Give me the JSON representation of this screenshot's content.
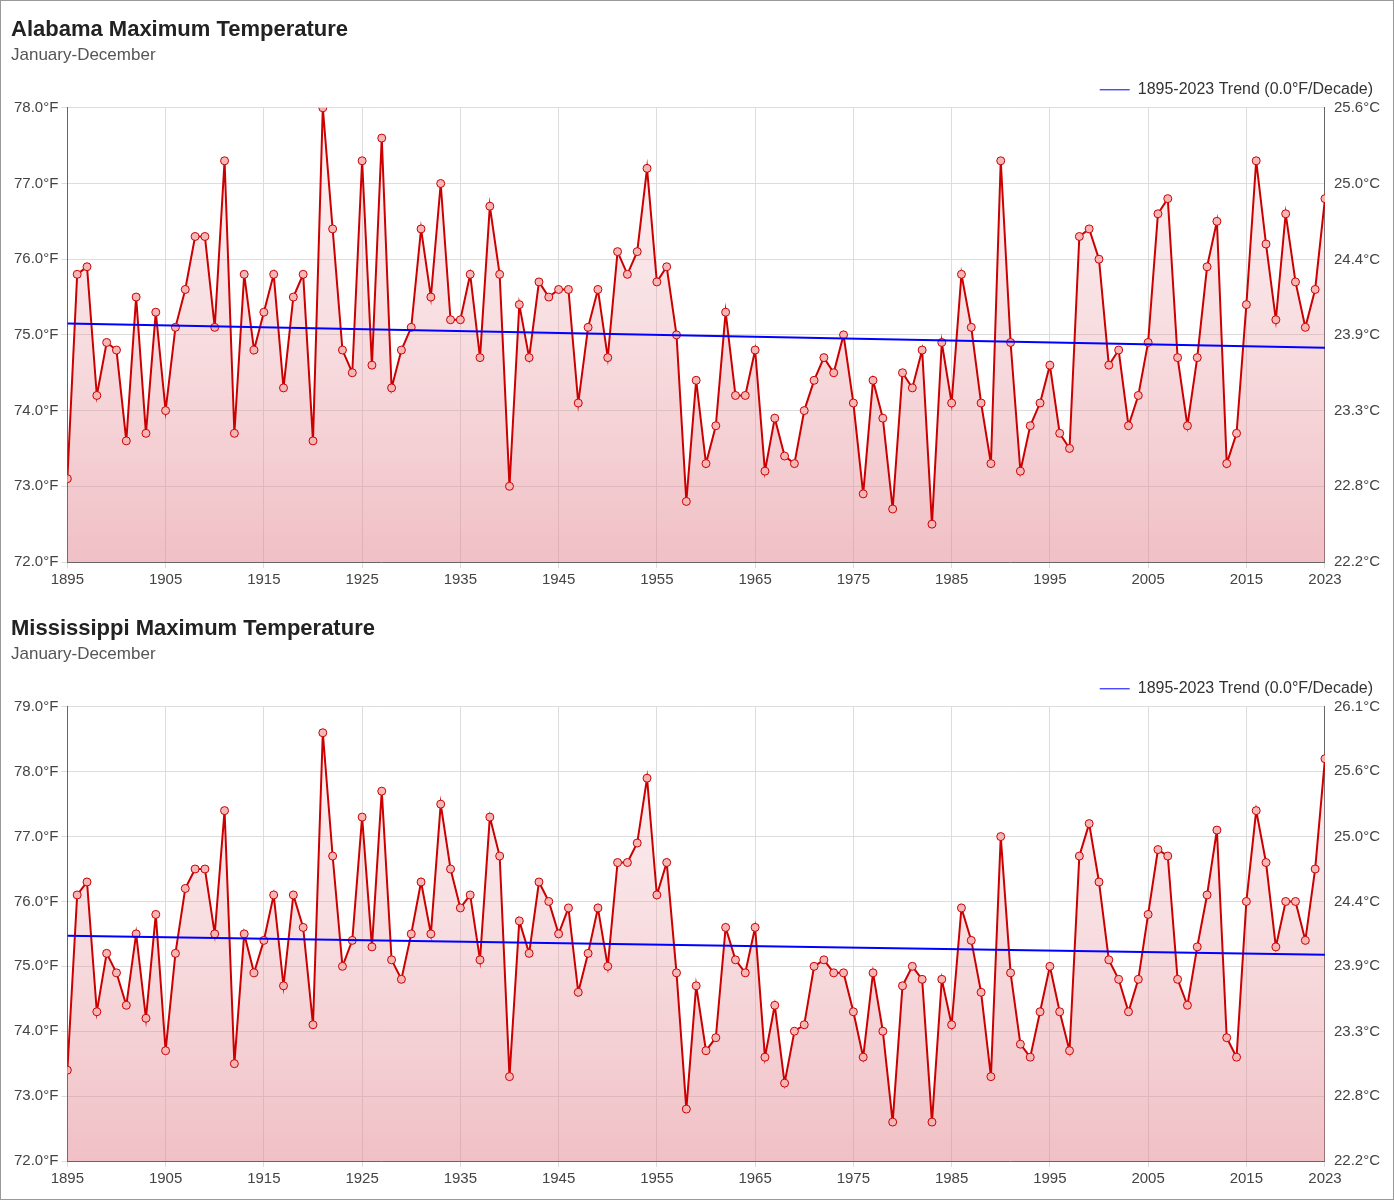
{
  "chart_data": [
    {
      "type": "line",
      "title": "Alabama Maximum Temperature",
      "subtitle": "January-December",
      "x": [
        1895,
        1896,
        1897,
        1898,
        1899,
        1900,
        1901,
        1902,
        1903,
        1904,
        1905,
        1906,
        1907,
        1908,
        1909,
        1910,
        1911,
        1912,
        1913,
        1914,
        1915,
        1916,
        1917,
        1918,
        1919,
        1920,
        1921,
        1922,
        1923,
        1924,
        1925,
        1926,
        1927,
        1928,
        1929,
        1930,
        1931,
        1932,
        1933,
        1934,
        1935,
        1936,
        1937,
        1938,
        1939,
        1940,
        1941,
        1942,
        1943,
        1944,
        1945,
        1946,
        1947,
        1948,
        1949,
        1950,
        1951,
        1952,
        1953,
        1954,
        1955,
        1956,
        1957,
        1958,
        1959,
        1960,
        1961,
        1962,
        1963,
        1964,
        1965,
        1966,
        1967,
        1968,
        1969,
        1970,
        1971,
        1972,
        1973,
        1974,
        1975,
        1976,
        1977,
        1978,
        1979,
        1980,
        1981,
        1982,
        1983,
        1984,
        1985,
        1986,
        1987,
        1988,
        1989,
        1990,
        1991,
        1992,
        1993,
        1994,
        1995,
        1996,
        1997,
        1998,
        1999,
        2000,
        2001,
        2002,
        2003,
        2004,
        2005,
        2006,
        2007,
        2008,
        2009,
        2010,
        2011,
        2012,
        2013,
        2014,
        2015,
        2016,
        2017,
        2018,
        2019,
        2020,
        2021,
        2022,
        2023
      ],
      "series": [
        {
          "color": "#cc0000",
          "marker": "circle",
          "line_style": "solid",
          "values": [
            73.1,
            75.8,
            75.9,
            74.2,
            74.9,
            74.8,
            73.6,
            75.5,
            73.7,
            75.3,
            74.0,
            75.1,
            75.6,
            76.3,
            76.3,
            75.1,
            77.3,
            73.7,
            75.8,
            74.8,
            75.3,
            75.8,
            74.3,
            75.5,
            75.8,
            73.6,
            78.0,
            76.4,
            74.8,
            74.5,
            77.3,
            74.6,
            77.6,
            74.3,
            74.8,
            75.1,
            76.4,
            75.5,
            77.0,
            75.2,
            75.2,
            75.8,
            74.7,
            76.7,
            75.8,
            73.0,
            75.4,
            74.7,
            75.7,
            75.5,
            75.6,
            75.6,
            74.1,
            75.1,
            75.6,
            74.7,
            76.1,
            75.8,
            76.1,
            77.2,
            75.7,
            75.9,
            75.0,
            72.8,
            74.4,
            73.3,
            73.8,
            75.3,
            74.2,
            74.2,
            74.8,
            73.2,
            73.9,
            73.4,
            73.3,
            74.0,
            74.4,
            74.7,
            74.5,
            75.0,
            74.1,
            72.9,
            74.4,
            73.9,
            72.7,
            74.5,
            74.3,
            74.8,
            72.5,
            74.9,
            74.1,
            75.8,
            75.1,
            74.1,
            73.3,
            77.3,
            74.9,
            73.2,
            73.8,
            74.1,
            74.6,
            73.7,
            73.5,
            76.3,
            76.4,
            76.0,
            74.6,
            74.8,
            73.8,
            74.2,
            74.9,
            76.6,
            76.8,
            74.7,
            73.8,
            74.7,
            75.9,
            76.5,
            73.3,
            73.7,
            75.4,
            77.3,
            76.2,
            75.2,
            76.6,
            75.7,
            75.1,
            75.6,
            76.8
          ]
        },
        {
          "name": "1895-2023 Trend (0.0°F/Decade)",
          "color": "#0000ff",
          "marker": "none",
          "line_style": "solid",
          "x": [
            1895,
            2023
          ],
          "values": [
            75.15,
            74.83
          ]
        }
      ],
      "xlim": [
        1895,
        2023
      ],
      "xticks": [
        1895,
        1905,
        1915,
        1925,
        1935,
        1945,
        1955,
        1965,
        1975,
        1985,
        1995,
        2005,
        2015,
        2023
      ],
      "ylim": [
        72,
        78
      ],
      "yticks": [
        {
          "value": 72,
          "label": "72.0°F"
        },
        {
          "value": 73,
          "label": "73.0°F"
        },
        {
          "value": 74,
          "label": "74.0°F"
        },
        {
          "value": 75,
          "label": "75.0°F"
        },
        {
          "value": 76,
          "label": "76.0°F"
        },
        {
          "value": 77,
          "label": "77.0°F"
        },
        {
          "value": 78,
          "label": "78.0°F"
        }
      ],
      "y2lim": [
        22.22,
        25.56
      ],
      "y2ticks": [
        {
          "value": 22.22,
          "label": "22.2°C"
        },
        {
          "value": 22.78,
          "label": "22.8°C"
        },
        {
          "value": 23.33,
          "label": "23.3°C"
        },
        {
          "value": 23.89,
          "label": "23.9°C"
        },
        {
          "value": 24.44,
          "label": "24.4°C"
        },
        {
          "value": 25.0,
          "label": "25.0°C"
        },
        {
          "value": 25.56,
          "label": "25.6°C"
        }
      ],
      "grid": true,
      "legend": "top-right"
    },
    {
      "type": "line",
      "title": "Mississippi Maximum Temperature",
      "subtitle": "January-December",
      "x": [
        1895,
        1896,
        1897,
        1898,
        1899,
        1900,
        1901,
        1902,
        1903,
        1904,
        1905,
        1906,
        1907,
        1908,
        1909,
        1910,
        1911,
        1912,
        1913,
        1914,
        1915,
        1916,
        1917,
        1918,
        1919,
        1920,
        1921,
        1922,
        1923,
        1924,
        1925,
        1926,
        1927,
        1928,
        1929,
        1930,
        1931,
        1932,
        1933,
        1934,
        1935,
        1936,
        1937,
        1938,
        1939,
        1940,
        1941,
        1942,
        1943,
        1944,
        1945,
        1946,
        1947,
        1948,
        1949,
        1950,
        1951,
        1952,
        1953,
        1954,
        1955,
        1956,
        1957,
        1958,
        1959,
        1960,
        1961,
        1962,
        1963,
        1964,
        1965,
        1966,
        1967,
        1968,
        1969,
        1970,
        1971,
        1972,
        1973,
        1974,
        1975,
        1976,
        1977,
        1978,
        1979,
        1980,
        1981,
        1982,
        1983,
        1984,
        1985,
        1986,
        1987,
        1988,
        1989,
        1990,
        1991,
        1992,
        1993,
        1994,
        1995,
        1996,
        1997,
        1998,
        1999,
        2000,
        2001,
        2002,
        2003,
        2004,
        2005,
        2006,
        2007,
        2008,
        2009,
        2010,
        2011,
        2012,
        2013,
        2014,
        2015,
        2016,
        2017,
        2018,
        2019,
        2020,
        2021,
        2022,
        2023
      ],
      "series": [
        {
          "color": "#cc0000",
          "marker": "circle",
          "line_style": "solid",
          "values": [
            73.4,
            76.1,
            76.3,
            74.3,
            75.2,
            74.9,
            74.4,
            75.5,
            74.2,
            75.8,
            73.7,
            75.2,
            76.2,
            76.5,
            76.5,
            75.5,
            77.4,
            73.5,
            75.5,
            74.9,
            75.4,
            76.1,
            74.7,
            76.1,
            75.6,
            74.1,
            78.6,
            76.7,
            75.0,
            75.4,
            77.3,
            75.3,
            77.7,
            75.1,
            74.8,
            75.5,
            76.3,
            75.5,
            77.5,
            76.5,
            75.9,
            76.1,
            75.1,
            77.3,
            76.7,
            73.3,
            75.7,
            75.2,
            76.3,
            76.0,
            75.5,
            75.9,
            74.6,
            75.2,
            75.9,
            75.0,
            76.6,
            76.6,
            76.9,
            77.9,
            76.1,
            76.6,
            74.9,
            72.8,
            74.7,
            73.7,
            73.9,
            75.6,
            75.1,
            74.9,
            75.6,
            73.6,
            74.4,
            73.2,
            74.0,
            74.1,
            75.0,
            75.1,
            74.9,
            74.9,
            74.3,
            73.6,
            74.9,
            74.0,
            72.6,
            74.7,
            75.0,
            74.8,
            72.6,
            74.8,
            74.1,
            75.9,
            75.4,
            74.6,
            73.3,
            77.0,
            74.9,
            73.8,
            73.6,
            74.3,
            75.0,
            74.3,
            73.7,
            76.7,
            77.2,
            76.3,
            75.1,
            74.8,
            74.3,
            74.8,
            75.8,
            76.8,
            76.7,
            74.8,
            74.4,
            75.3,
            76.1,
            77.1,
            73.9,
            73.6,
            76.0,
            77.4,
            76.6,
            75.3,
            76.0,
            76.0,
            75.4,
            76.5,
            78.2
          ]
        },
        {
          "name": "1895-2023 Trend (0.0°F/Decade)",
          "color": "#0000ff",
          "marker": "none",
          "line_style": "solid",
          "x": [
            1895,
            2023
          ],
          "values": [
            75.47,
            75.18
          ]
        }
      ],
      "xlim": [
        1895,
        2023
      ],
      "xticks": [
        1895,
        1905,
        1915,
        1925,
        1935,
        1945,
        1955,
        1965,
        1975,
        1985,
        1995,
        2005,
        2015,
        2023
      ],
      "ylim": [
        72,
        79
      ],
      "yticks": [
        {
          "value": 72,
          "label": "72.0°F"
        },
        {
          "value": 73,
          "label": "73.0°F"
        },
        {
          "value": 74,
          "label": "74.0°F"
        },
        {
          "value": 75,
          "label": "75.0°F"
        },
        {
          "value": 76,
          "label": "76.0°F"
        },
        {
          "value": 77,
          "label": "77.0°F"
        },
        {
          "value": 78,
          "label": "78.0°F"
        },
        {
          "value": 79,
          "label": "79.0°F"
        }
      ],
      "y2lim": [
        22.22,
        26.11
      ],
      "y2ticks": [
        {
          "value": 22.22,
          "label": "22.2°C"
        },
        {
          "value": 22.78,
          "label": "22.8°C"
        },
        {
          "value": 23.33,
          "label": "23.3°C"
        },
        {
          "value": 23.89,
          "label": "23.9°C"
        },
        {
          "value": 24.44,
          "label": "24.4°C"
        },
        {
          "value": 25.0,
          "label": "25.0°C"
        },
        {
          "value": 25.56,
          "label": "25.6°C"
        },
        {
          "value": 26.11,
          "label": "26.1°C"
        }
      ],
      "grid": true,
      "legend": "top-right"
    }
  ]
}
